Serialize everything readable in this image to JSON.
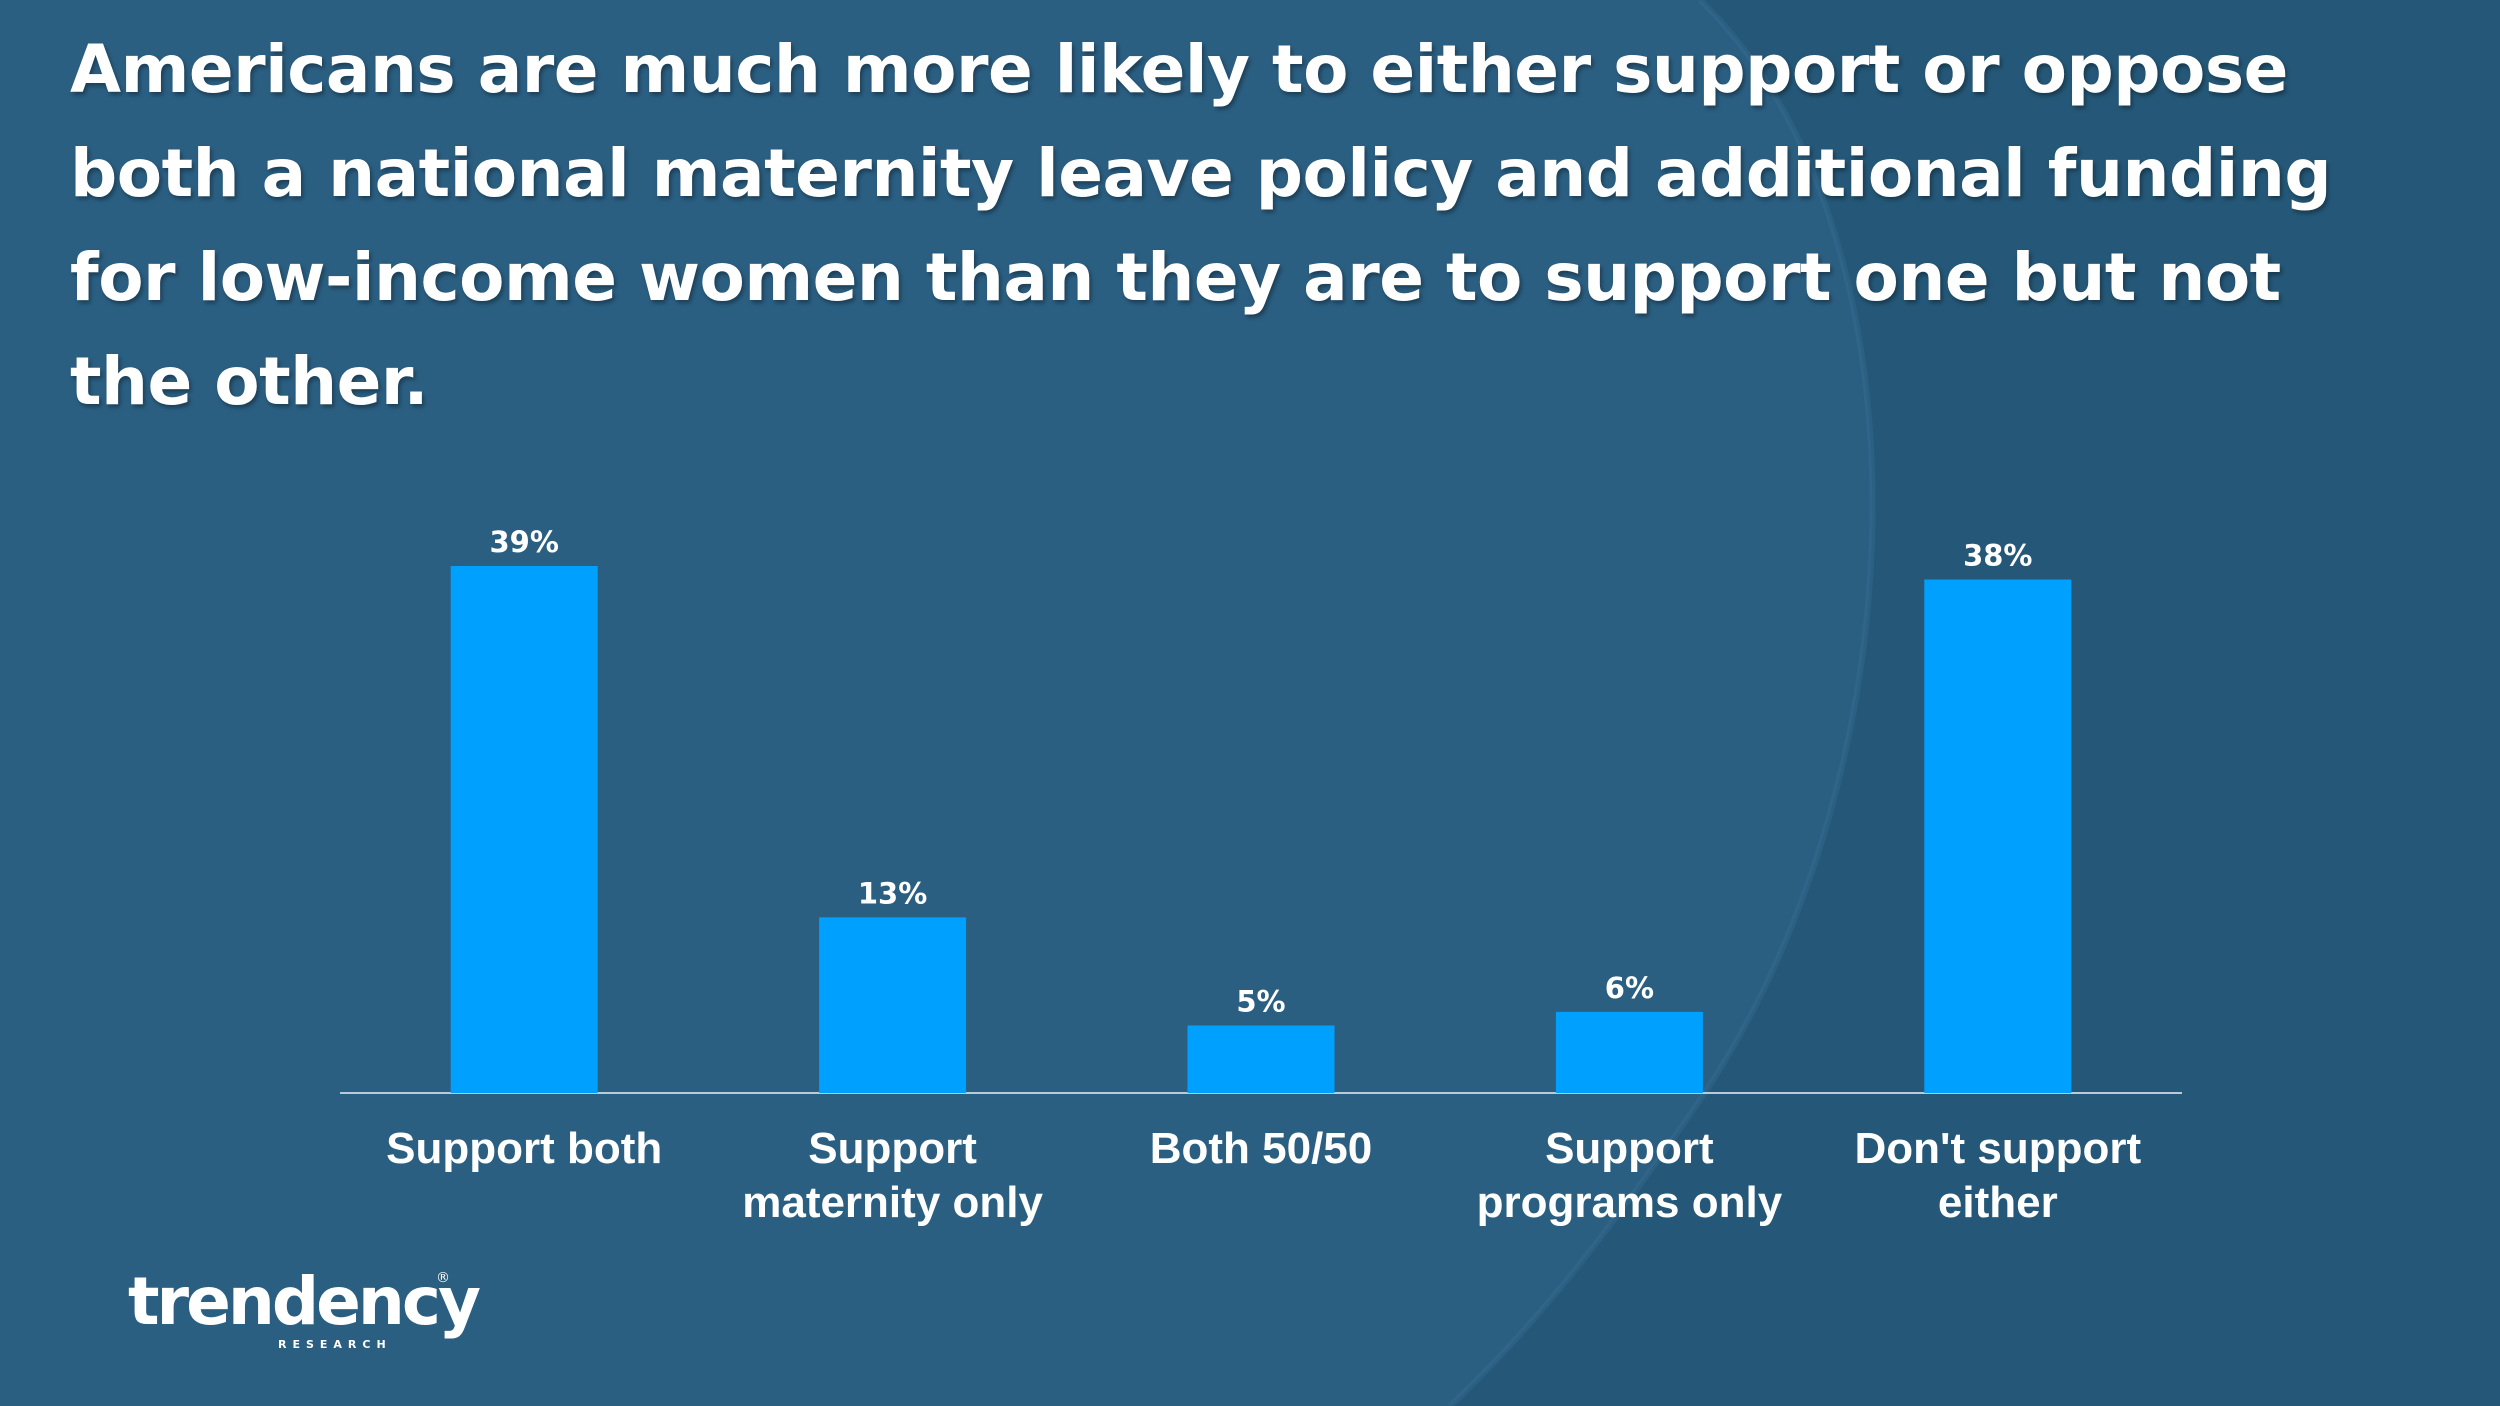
{
  "slide": {
    "title": "Americans are much more likely to either support or oppose both a national maternity leave policy and additional funding for low-income women than they are to support one but not the other."
  },
  "logo": {
    "name": "trendency",
    "tagline": "RESEARCH",
    "registered": "®"
  },
  "colors": {
    "background": "#2b5f82",
    "background_dark": "#245777",
    "bar": "#00a0ff",
    "text": "#ffffff",
    "axis": "#b9cbd8"
  },
  "chart_data": {
    "type": "bar",
    "title": "",
    "categories": [
      [
        "Support both"
      ],
      [
        "Support",
        "maternity only"
      ],
      [
        "Both 50/50"
      ],
      [
        "Support",
        "programs only"
      ],
      [
        "Don't support",
        "either"
      ]
    ],
    "values": [
      39,
      13,
      5,
      6,
      38
    ],
    "value_labels": [
      "39%",
      "13%",
      "5%",
      "6%",
      "38%"
    ],
    "xlabel": "",
    "ylabel": "",
    "ylim": [
      0,
      40
    ],
    "grid": false,
    "legend": "none"
  }
}
